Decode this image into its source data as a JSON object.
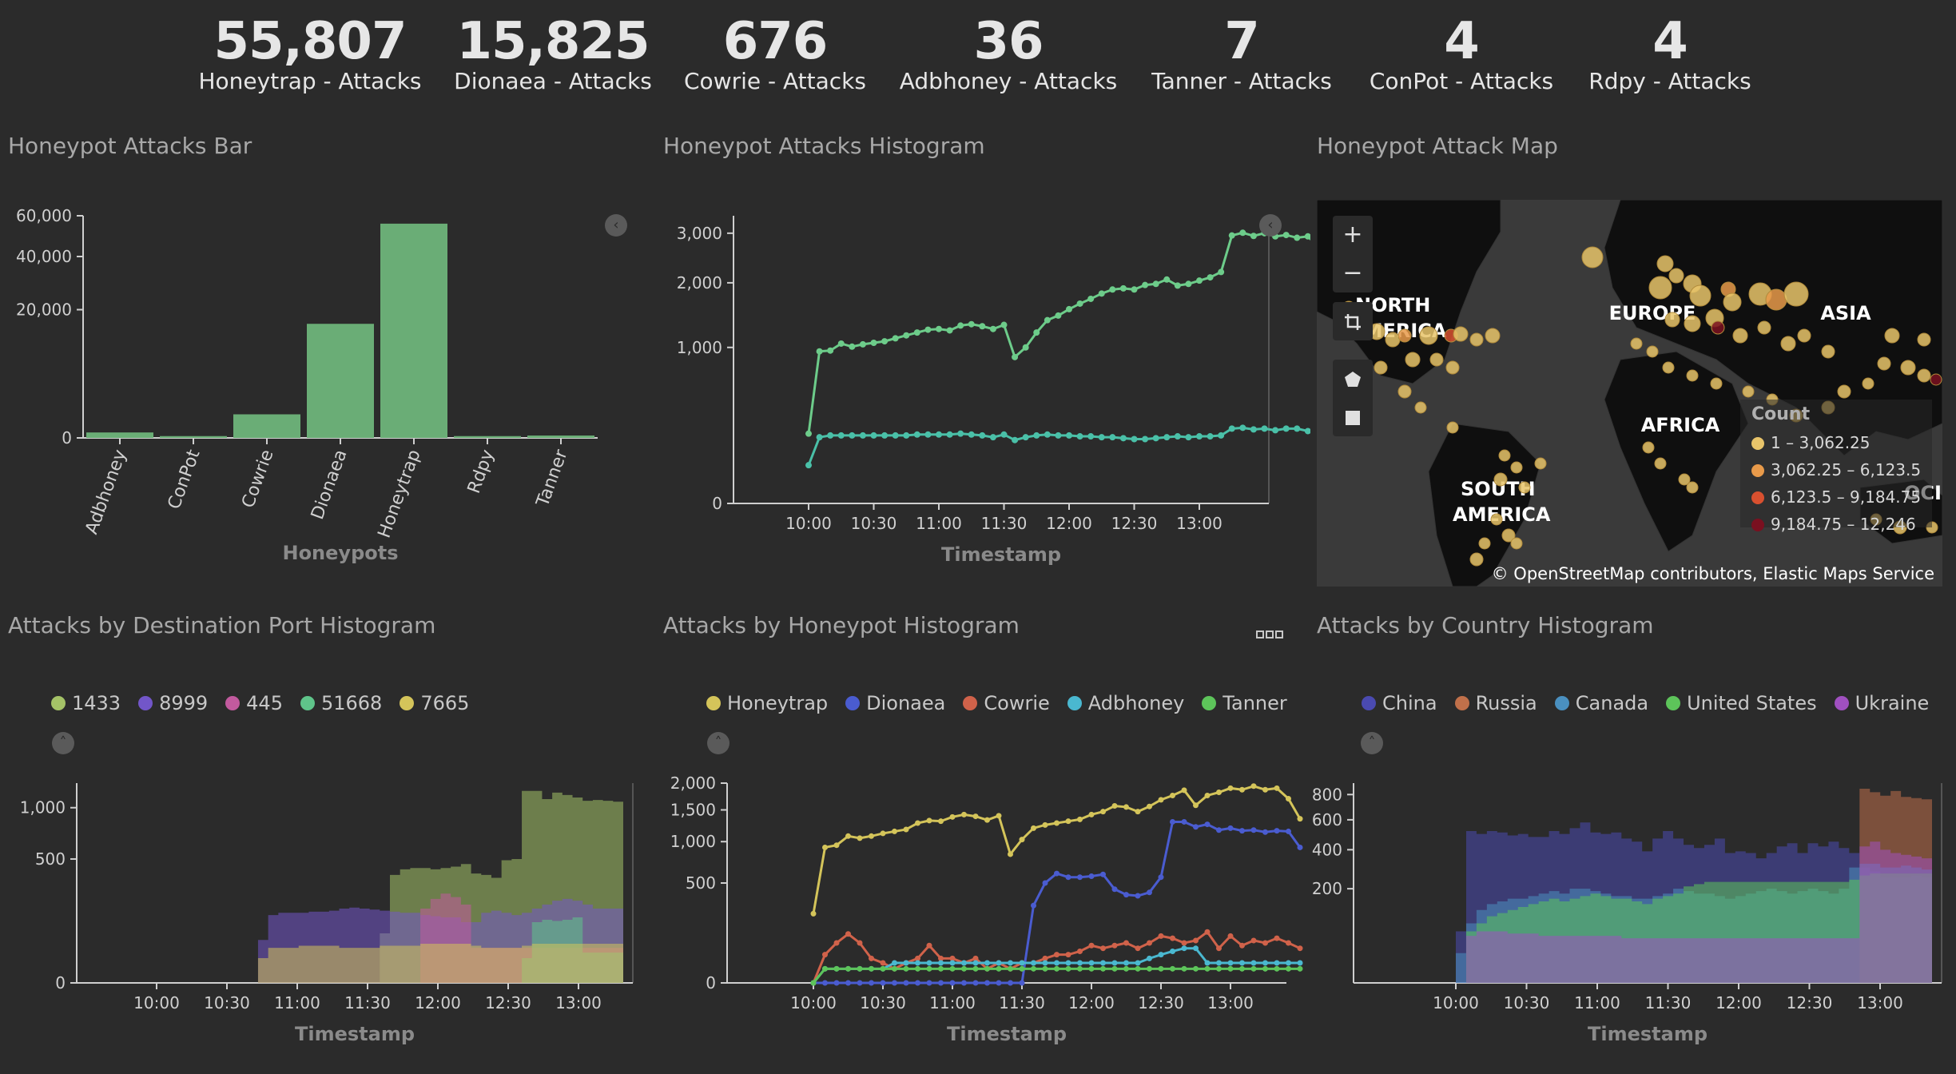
{
  "metrics": [
    {
      "value": "55,807",
      "label": "Honeytrap - Attacks"
    },
    {
      "value": "15,825",
      "label": "Dionaea - Attacks"
    },
    {
      "value": "676",
      "label": "Cowrie - Attacks"
    },
    {
      "value": "36",
      "label": "Adbhoney - Attacks"
    },
    {
      "value": "7",
      "label": "Tanner - Attacks"
    },
    {
      "value": "4",
      "label": "ConPot - Attacks"
    },
    {
      "value": "4",
      "label": "Rdpy - Attacks"
    }
  ],
  "panels": {
    "bar": {
      "title": "Honeypot Attacks Bar"
    },
    "histogram": {
      "title": "Honeypot Attacks Histogram"
    },
    "map": {
      "title": "Honeypot Attack Map"
    },
    "port": {
      "title": "Attacks by Destination Port Histogram"
    },
    "honeypot": {
      "title": "Attacks by Honeypot Histogram"
    },
    "country": {
      "title": "Attacks by Country Histogram"
    }
  },
  "map": {
    "labels": [
      "NORTH AMERICA",
      "EUROPE",
      "ASIA",
      "AFRICA",
      "SOUTH AMERICA"
    ],
    "legend_title": "Count",
    "legend": [
      {
        "range": "1 – 3,062.25",
        "color": "#e8c46a"
      },
      {
        "range": "3,062.25 – 6,123.5",
        "color": "#e89a4a"
      },
      {
        "range": "6,123.5 – 9,184.75",
        "color": "#d8502f"
      },
      {
        "range": "9,184.75 – 12,246",
        "color": "#7a1020"
      }
    ],
    "attribution": "© OpenStreetMap contributors, Elastic Maps Service",
    "controls": [
      "zoom-in",
      "zoom-out",
      "crop",
      "polygon",
      "rectangle"
    ]
  },
  "legends": {
    "port": [
      {
        "name": "1433",
        "color": "#a4c267"
      },
      {
        "name": "8999",
        "color": "#7256c9"
      },
      {
        "name": "445",
        "color": "#c25a9e"
      },
      {
        "name": "51668",
        "color": "#5fc48a"
      },
      {
        "name": "7665",
        "color": "#d4c45a"
      }
    ],
    "honeypot": [
      {
        "name": "Honeytrap",
        "color": "#d4c45a"
      },
      {
        "name": "Dionaea",
        "color": "#4a5cd0"
      },
      {
        "name": "Cowrie",
        "color": "#d0624a"
      },
      {
        "name": "Adbhoney",
        "color": "#4ab8d0"
      },
      {
        "name": "Tanner",
        "color": "#5dc45a"
      }
    ],
    "country": [
      {
        "name": "China",
        "color": "#4a4ab0"
      },
      {
        "name": "Russia",
        "color": "#c0704a"
      },
      {
        "name": "Canada",
        "color": "#4a90c0"
      },
      {
        "name": "United States",
        "color": "#5dc45a"
      },
      {
        "name": "Ukraine",
        "color": "#a050c0"
      }
    ]
  },
  "time_ticks": [
    "10:00",
    "10:30",
    "11:00",
    "11:30",
    "12:00",
    "12:30",
    "13:00"
  ],
  "axis_label_timestamp": "Timestamp",
  "chart_data": [
    {
      "type": "bar",
      "title": "Honeypot Attacks Bar",
      "xlabel": "Honeypots",
      "ylabel": "",
      "categories": [
        "Adbhoney",
        "ConPot",
        "Cowrie",
        "Dionaea",
        "Honeytrap",
        "Rdpy",
        "Tanner"
      ],
      "values": [
        36,
        4,
        676,
        15825,
        55807,
        4,
        7
      ],
      "y_ticks": [
        "0",
        "20,000",
        "40,000",
        "60,000"
      ],
      "scale": "sqrt",
      "color": "#6aad76"
    },
    {
      "type": "line",
      "title": "Honeypot Attacks Histogram",
      "xlabel": "Timestamp",
      "y_ticks": [
        "0",
        "1,000",
        "2,000",
        "3,000"
      ],
      "scale": "sqrt",
      "series": [
        {
          "color": "#6dcc8a",
          "values": [
            200,
            950,
            960,
            1050,
            1010,
            1040,
            1060,
            1080,
            1120,
            1160,
            1200,
            1240,
            1250,
            1230,
            1300,
            1320,
            1290,
            1250,
            1310,
            880,
            1000,
            1200,
            1380,
            1450,
            1550,
            1640,
            1720,
            1810,
            1880,
            1900,
            1880,
            1960,
            1980,
            2060,
            1950,
            1980,
            2040,
            2100,
            2200,
            2950,
            3010,
            2940,
            3000,
            2930,
            2960,
            2900,
            2930,
            2700
          ]
        },
        {
          "color": "#4ac0a8",
          "values": [
            60,
            180,
            190,
            190,
            190,
            190,
            190,
            190,
            190,
            190,
            195,
            195,
            195,
            195,
            200,
            195,
            190,
            180,
            195,
            165,
            180,
            190,
            195,
            190,
            190,
            185,
            185,
            180,
            180,
            175,
            170,
            170,
            175,
            180,
            185,
            180,
            185,
            185,
            190,
            230,
            235,
            225,
            230,
            220,
            230,
            230,
            215,
            190
          ]
        }
      ]
    },
    {
      "type": "area",
      "title": "Attacks by Destination Port Histogram",
      "xlabel": "Timestamp",
      "y_ticks": [
        "0",
        "500",
        "1,000"
      ],
      "scale": "sqrt",
      "series": [
        {
          "name": "1433",
          "color": "#a4c267",
          "values": [
            0,
            0,
            0,
            0,
            0,
            0,
            0,
            0,
            0,
            0,
            0,
            0,
            0,
            0,
            0,
            0,
            0,
            0,
            0,
            0,
            0,
            0,
            80,
            380,
            420,
            430,
            430,
            420,
            430,
            440,
            460,
            390,
            380,
            360,
            490,
            500,
            1200,
            1200,
            1100,
            1180,
            1150,
            1120,
            1080,
            1090,
            1080,
            1070
          ]
        },
        {
          "name": "8999",
          "color": "#7256c9",
          "values": [
            0,
            0,
            0,
            0,
            0,
            0,
            0,
            0,
            0,
            0,
            60,
            150,
            160,
            160,
            160,
            165,
            165,
            170,
            180,
            185,
            180,
            175,
            170,
            165,
            160,
            160,
            150,
            145,
            140,
            140,
            120,
            120,
            160,
            170,
            160,
            150,
            160,
            180,
            200,
            220,
            230,
            220,
            200,
            180,
            180,
            180
          ]
        },
        {
          "name": "445",
          "color": "#c25a9e",
          "values": [
            0,
            0,
            0,
            0,
            0,
            0,
            0,
            0,
            0,
            0,
            0,
            0,
            0,
            0,
            0,
            0,
            0,
            0,
            0,
            0,
            0,
            0,
            0,
            0,
            0,
            0,
            180,
            230,
            260,
            240,
            200,
            40,
            40,
            40,
            40,
            40,
            40,
            40,
            40,
            40,
            40,
            40,
            40,
            40,
            40,
            40
          ]
        },
        {
          "name": "51668",
          "color": "#5fc48a",
          "values": [
            0,
            0,
            0,
            0,
            0,
            0,
            0,
            0,
            0,
            0,
            0,
            0,
            0,
            0,
            0,
            0,
            0,
            0,
            0,
            0,
            0,
            0,
            0,
            0,
            0,
            0,
            0,
            0,
            0,
            0,
            0,
            0,
            0,
            0,
            0,
            0,
            20,
            120,
            130,
            125,
            130,
            140,
            30,
            30,
            30,
            30
          ]
        },
        {
          "name": "7665",
          "color": "#d4c45a",
          "values": [
            0,
            0,
            0,
            0,
            0,
            0,
            0,
            0,
            0,
            0,
            20,
            40,
            40,
            40,
            45,
            45,
            45,
            45,
            40,
            40,
            40,
            40,
            45,
            45,
            45,
            45,
            50,
            50,
            50,
            50,
            50,
            45,
            40,
            40,
            40,
            40,
            45,
            50,
            50,
            50,
            50,
            50,
            50,
            50,
            50,
            50
          ]
        }
      ]
    },
    {
      "type": "line",
      "title": "Attacks by Honeypot Histogram",
      "xlabel": "Timestamp",
      "y_ticks": [
        "0",
        "500",
        "1,000",
        "1,500",
        "2,000"
      ],
      "scale": "sqrt",
      "series": [
        {
          "name": "Honeytrap",
          "color": "#d4c45a",
          "values": [
            240,
            920,
            950,
            1080,
            1050,
            1080,
            1120,
            1150,
            1180,
            1280,
            1320,
            1310,
            1380,
            1420,
            1390,
            1330,
            1400,
            830,
            1030,
            1200,
            1250,
            1280,
            1310,
            1340,
            1420,
            1470,
            1570,
            1550,
            1470,
            1560,
            1680,
            1760,
            1860,
            1580,
            1760,
            1820,
            1900,
            1870,
            1940,
            1870,
            1900,
            1700,
            1350
          ]
        },
        {
          "name": "Dionaea",
          "color": "#4a5cd0",
          "values": [
            0,
            0,
            0,
            0,
            0,
            0,
            0,
            0,
            0,
            0,
            0,
            0,
            0,
            0,
            0,
            0,
            0,
            0,
            0,
            300,
            500,
            600,
            560,
            560,
            570,
            590,
            440,
            390,
            380,
            410,
            560,
            1300,
            1300,
            1220,
            1260,
            1170,
            1200,
            1160,
            1170,
            1140,
            1160,
            1150,
            920
          ]
        },
        {
          "name": "Cowrie",
          "color": "#d0624a",
          "values": [
            0,
            40,
            80,
            120,
            80,
            30,
            20,
            10,
            20,
            30,
            70,
            30,
            30,
            20,
            30,
            10,
            20,
            10,
            20,
            20,
            30,
            40,
            40,
            50,
            70,
            60,
            70,
            80,
            60,
            80,
            110,
            100,
            80,
            90,
            130,
            60,
            110,
            70,
            90,
            80,
            100,
            80,
            60
          ]
        },
        {
          "name": "Adbhoney",
          "color": "#4ab8d0",
          "values": [
            0,
            10,
            10,
            10,
            10,
            10,
            10,
            20,
            20,
            20,
            20,
            20,
            20,
            20,
            20,
            20,
            20,
            20,
            20,
            20,
            20,
            20,
            20,
            20,
            20,
            20,
            20,
            20,
            20,
            30,
            40,
            50,
            60,
            60,
            20,
            20,
            20,
            20,
            20,
            20,
            20,
            20,
            20
          ]
        },
        {
          "name": "Tanner",
          "color": "#5dc45a",
          "values": [
            0,
            10,
            10,
            10,
            10,
            10,
            10,
            10,
            10,
            10,
            10,
            10,
            10,
            10,
            10,
            10,
            10,
            10,
            10,
            10,
            10,
            10,
            10,
            10,
            10,
            10,
            10,
            10,
            10,
            10,
            10,
            10,
            10,
            10,
            10,
            10,
            10,
            10,
            10,
            10,
            10,
            10,
            10
          ]
        }
      ]
    },
    {
      "type": "area",
      "title": "Attacks by Country Histogram",
      "xlabel": "Timestamp",
      "y_ticks": [
        "200",
        "400",
        "600",
        "800"
      ],
      "scale": "sqrt",
      "series": [
        {
          "name": "China",
          "color": "#4a4ab0",
          "values": [
            60,
            520,
            500,
            520,
            510,
            490,
            500,
            480,
            480,
            520,
            500,
            540,
            580,
            510,
            500,
            510,
            470,
            450,
            390,
            470,
            520,
            470,
            430,
            410,
            430,
            470,
            380,
            390,
            380,
            350,
            380,
            420,
            440,
            380,
            440,
            420,
            450,
            410,
            380,
            300,
            280,
            250,
            250,
            250,
            260,
            250
          ]
        },
        {
          "name": "Russia",
          "color": "#c0704a",
          "values": [
            0,
            0,
            0,
            0,
            0,
            0,
            0,
            0,
            0,
            0,
            0,
            0,
            0,
            0,
            0,
            0,
            0,
            0,
            0,
            0,
            0,
            0,
            0,
            0,
            0,
            0,
            0,
            0,
            0,
            0,
            0,
            0,
            0,
            0,
            0,
            0,
            0,
            0,
            0,
            850,
            820,
            790,
            830,
            780,
            770,
            760
          ]
        },
        {
          "name": "Canada",
          "color": "#4a90c0",
          "values": [
            20,
            80,
            120,
            140,
            150,
            160,
            160,
            170,
            180,
            190,
            180,
            200,
            200,
            190,
            180,
            170,
            170,
            160,
            160,
            170,
            180,
            200,
            190,
            180,
            180,
            170,
            160,
            170,
            180,
            190,
            200,
            190,
            180,
            190,
            200,
            190,
            180,
            200,
            300,
            320,
            320,
            300,
            300,
            310,
            300,
            290
          ]
        },
        {
          "name": "United States",
          "color": "#5dc45a",
          "values": [
            0,
            60,
            80,
            100,
            110,
            120,
            130,
            140,
            150,
            160,
            150,
            160,
            170,
            180,
            170,
            160,
            160,
            150,
            140,
            160,
            170,
            180,
            210,
            220,
            230,
            230,
            230,
            230,
            230,
            230,
            230,
            230,
            230,
            230,
            230,
            230,
            230,
            230,
            240,
            260,
            270,
            270,
            270,
            270,
            270,
            270
          ]
        },
        {
          "name": "Ukraine",
          "color": "#a050c0",
          "values": [
            0,
            50,
            60,
            60,
            60,
            55,
            55,
            55,
            50,
            50,
            50,
            50,
            50,
            50,
            50,
            50,
            45,
            45,
            45,
            45,
            45,
            45,
            45,
            45,
            45,
            45,
            45,
            45,
            45,
            45,
            45,
            45,
            45,
            45,
            45,
            45,
            45,
            45,
            45,
            420,
            450,
            400,
            380,
            370,
            360,
            350
          ]
        }
      ]
    }
  ]
}
